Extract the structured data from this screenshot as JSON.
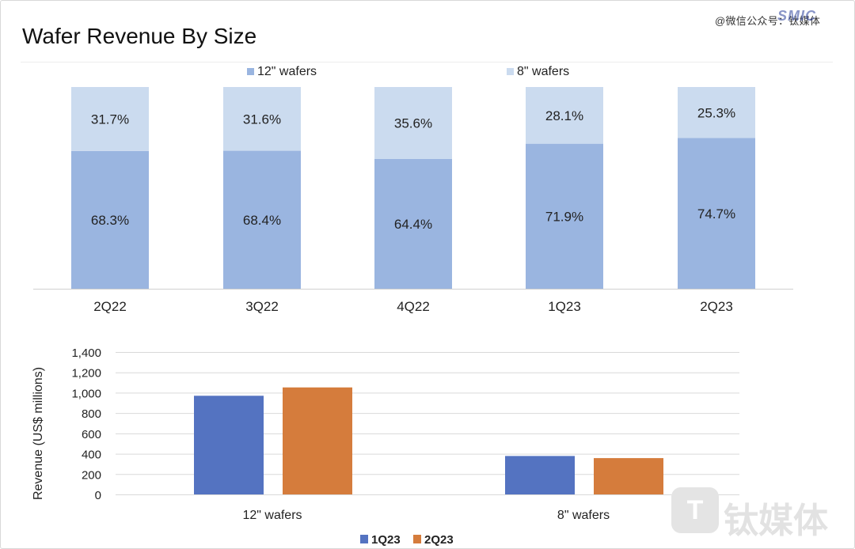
{
  "page_title": "Wafer Revenue By Size",
  "watermark_top": "@微信公众号：钛媒体",
  "logo_text": "SMIC",
  "watermark_bottom": "钛媒体",
  "watermark_bottom_logo": "T",
  "colors": {
    "wafer12_top": "#9ab5e0",
    "wafer8_top": "#cbdbef",
    "q1_23": "#5473c1",
    "q2_23": "#d57c3c"
  },
  "chart_data": [
    {
      "type": "bar",
      "stacked": true,
      "percent_stacked": true,
      "categories": [
        "2Q22",
        "3Q22",
        "4Q22",
        "1Q23",
        "2Q23"
      ],
      "series": [
        {
          "name": "12\" wafers",
          "values": [
            68.3,
            68.4,
            64.4,
            71.9,
            74.7
          ],
          "labels": [
            "68.3%",
            "68.4%",
            "64.4%",
            "71.9%",
            "74.7%"
          ],
          "color": "#9ab5e0"
        },
        {
          "name": "8\" wafers",
          "values": [
            31.7,
            31.6,
            35.6,
            28.1,
            25.3
          ],
          "labels": [
            "31.7%",
            "31.6%",
            "35.6%",
            "28.1%",
            "25.3%"
          ],
          "color": "#cbdbef"
        }
      ],
      "ylim": [
        0,
        100
      ],
      "legend": "top"
    },
    {
      "type": "bar",
      "categories": [
        "12\" wafers",
        "8\" wafers"
      ],
      "series": [
        {
          "name": "1Q23",
          "values": [
            970,
            378
          ],
          "color": "#5473c1"
        },
        {
          "name": "2Q23",
          "values": [
            1052,
            357
          ],
          "color": "#d57c3c"
        }
      ],
      "ylabel": "Revenue (US$  millions)",
      "ylim": [
        0,
        1400
      ],
      "yticks": [
        0,
        200,
        400,
        600,
        800,
        1000,
        1200,
        1400
      ],
      "ytick_labels": [
        "0",
        "200",
        "400",
        "600",
        "800",
        "1,000",
        "1,200",
        "1,400"
      ],
      "grid": true,
      "legend": "bottom"
    }
  ]
}
